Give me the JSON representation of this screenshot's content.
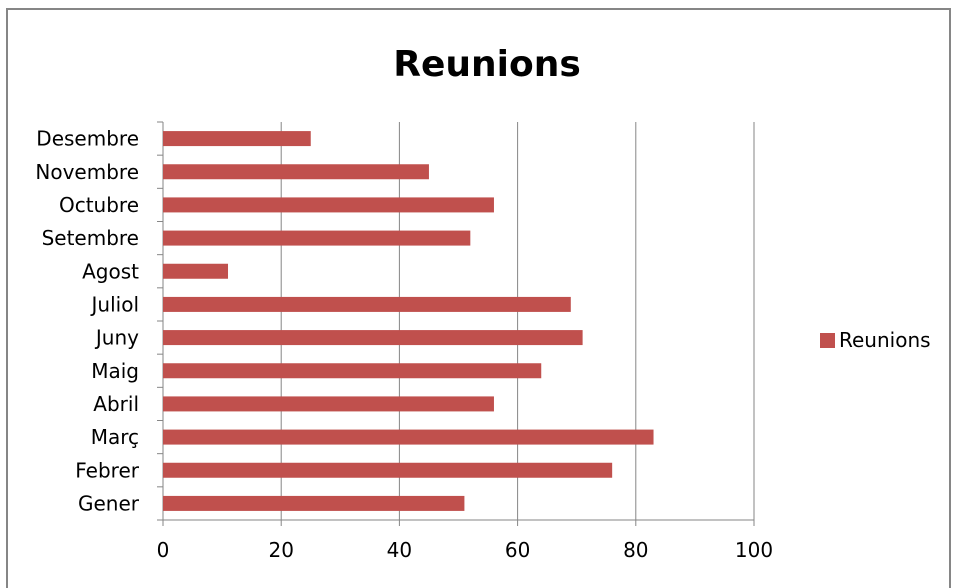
{
  "chart_data": {
    "type": "bar",
    "orientation": "horizontal",
    "title": "Reunions",
    "xlabel": "",
    "ylabel": "",
    "xlim": [
      0,
      100
    ],
    "x_ticks": [
      0,
      20,
      40,
      60,
      80,
      100
    ],
    "grid": "vertical major gridlines",
    "legend_position": "right",
    "categories": [
      "Gener",
      "Febrer",
      "Març",
      "Abril",
      "Maig",
      "Juny",
      "Juliol",
      "Agost",
      "Setembre",
      "Octubre",
      "Novembre",
      "Desembre"
    ],
    "series": [
      {
        "name": "Reunions",
        "color": "#c0504d",
        "values": [
          51,
          76,
          83,
          56,
          64,
          71,
          69,
          11,
          52,
          56,
          45,
          25
        ]
      }
    ]
  }
}
